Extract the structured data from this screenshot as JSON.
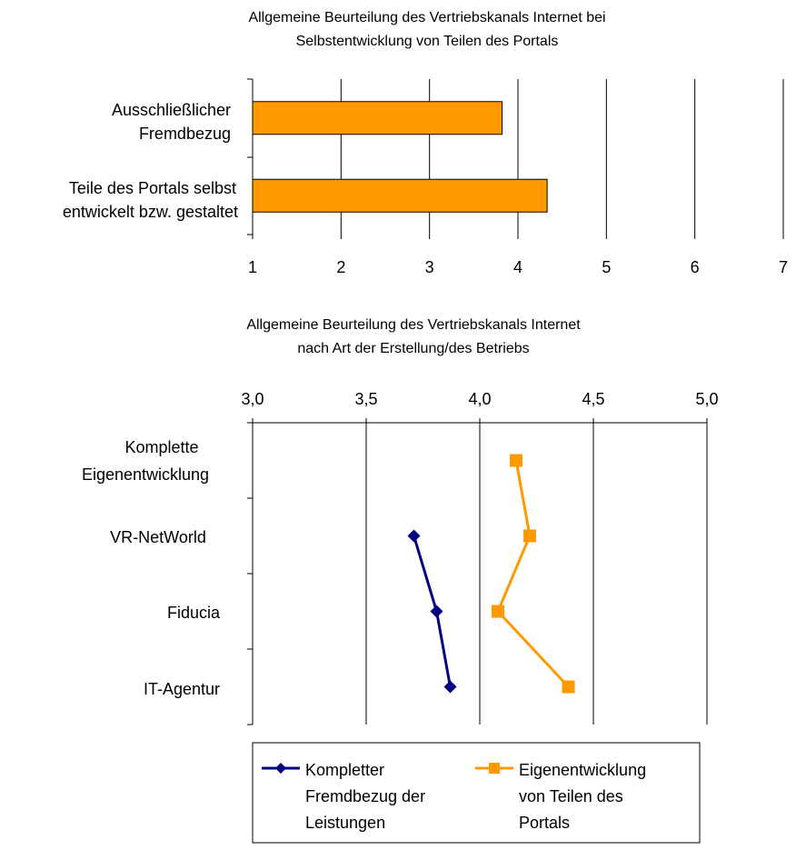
{
  "chart_data": [
    {
      "type": "bar",
      "orientation": "horizontal",
      "title_lines": [
        "Allgemeine Beurteilung des Vertriebskanals Internet bei",
        "Selbstentwicklung von Teilen des Portals"
      ],
      "categories": [
        [
          "Ausschließlicher",
          "Fremdbezug"
        ],
        [
          "Teile des Portals selbst",
          "entwickelt bzw. gestaltet"
        ]
      ],
      "values": [
        3.82,
        4.33
      ],
      "xlim": [
        1,
        7
      ],
      "ticks": [
        "1",
        "2",
        "3",
        "4",
        "5",
        "6",
        "7"
      ],
      "grid": true,
      "colors": {
        "bar": "#FF9900",
        "bar_stroke": "#000000",
        "grid": "#000000"
      }
    },
    {
      "type": "line",
      "orientation": "horizontal-value-axis-top",
      "title_lines": [
        "Allgemeine Beurteilung des Vertriebskanals Internet",
        "nach Art der Erstellung/des Betriebs"
      ],
      "categories": [
        [
          "Komplette",
          "Eigenentwicklung"
        ],
        [
          "VR-NetWorld"
        ],
        [
          "Fiducia"
        ],
        [
          "IT-Agentur"
        ]
      ],
      "xlim": [
        3.0,
        5.0
      ],
      "ticks": [
        "3,0",
        "3,5",
        "4,0",
        "4,5",
        "5,0"
      ],
      "grid": true,
      "legend_position": "bottom",
      "series": [
        {
          "name_lines": [
            "Kompletter",
            "Fremdbezug der",
            "Leistungen"
          ],
          "values": [
            null,
            3.71,
            3.81,
            3.87
          ],
          "color": "#000080",
          "marker": "diamond"
        },
        {
          "name_lines": [
            "Eigenentwicklung",
            "von Teilen des",
            "Portals"
          ],
          "values": [
            4.16,
            4.22,
            4.08,
            4.39
          ],
          "color": "#FF9900",
          "marker": "square"
        }
      ]
    }
  ]
}
